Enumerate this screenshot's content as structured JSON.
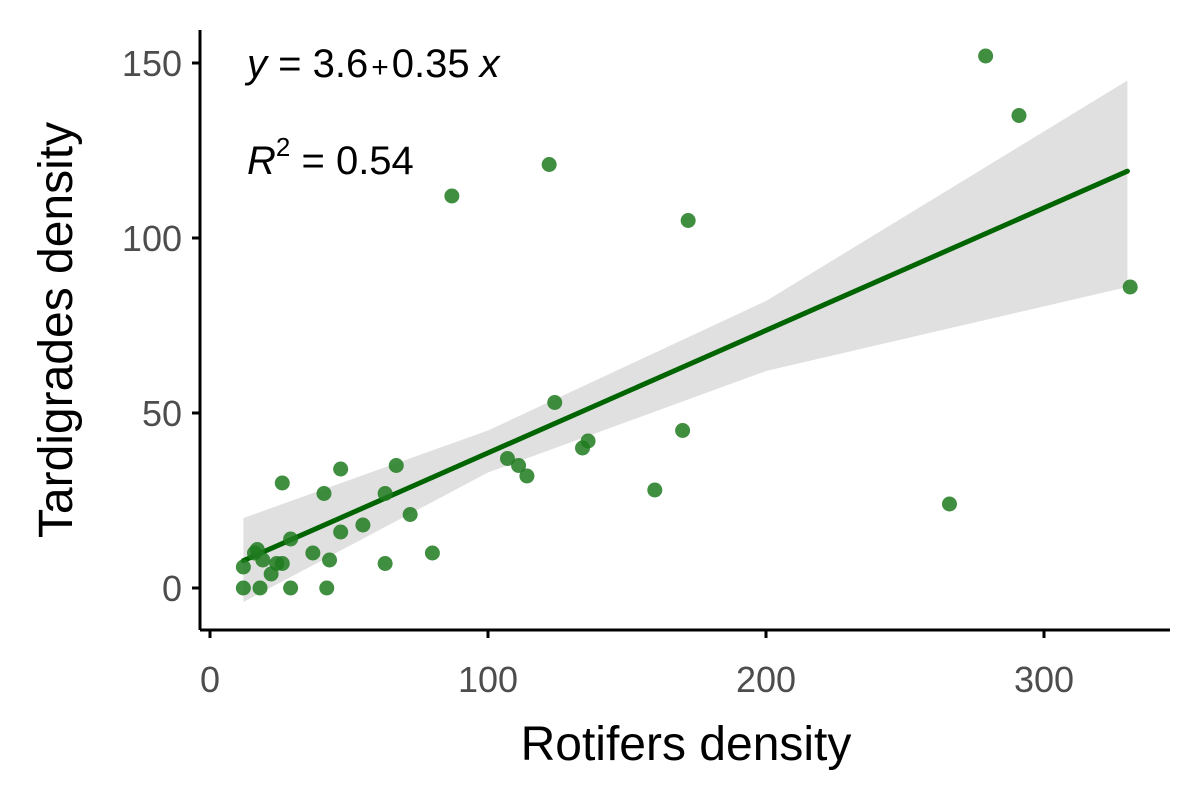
{
  "chart_data": {
    "type": "scatter",
    "xlabel": "Rotifers density",
    "ylabel": "Tardigrades density",
    "xlim": [
      0,
      345
    ],
    "ylim": [
      -10,
      158
    ],
    "x_ticks": [
      0,
      100,
      200,
      300
    ],
    "y_ticks": [
      0,
      50,
      100,
      150
    ],
    "x_tick_labels": [
      "0",
      "100",
      "200",
      "300"
    ],
    "y_tick_labels": [
      "0",
      "50",
      "100",
      "150"
    ],
    "grid": false,
    "colors": {
      "points": "#1e7a1e",
      "line": "#006400",
      "ribbon": "#e0e0e0",
      "axis": "#000000",
      "tick_text": "#4d4d4d"
    },
    "annotations": {
      "equation": {
        "y_var": "y",
        "equals_intercept": " = 3.6",
        "plus": "+",
        "slope": "0.35",
        "x_var": "x"
      },
      "r2": {
        "r": "R",
        "sup": "2",
        "value": " = 0.54"
      }
    },
    "regression": {
      "intercept": 3.6,
      "slope": 0.35,
      "x_range": [
        12,
        330
      ]
    },
    "confidence_band": [
      {
        "x": 12,
        "lower": -4,
        "upper": 20
      },
      {
        "x": 100,
        "lower": 33,
        "upper": 45
      },
      {
        "x": 200,
        "lower": 62,
        "upper": 82
      },
      {
        "x": 330,
        "lower": 86,
        "upper": 145
      }
    ],
    "points": [
      {
        "x": 12,
        "y": 0
      },
      {
        "x": 12,
        "y": 6
      },
      {
        "x": 16,
        "y": 10
      },
      {
        "x": 17,
        "y": 11
      },
      {
        "x": 18,
        "y": 0
      },
      {
        "x": 19,
        "y": 8
      },
      {
        "x": 22,
        "y": 4
      },
      {
        "x": 24,
        "y": 7
      },
      {
        "x": 26,
        "y": 30
      },
      {
        "x": 26,
        "y": 7
      },
      {
        "x": 29,
        "y": 0
      },
      {
        "x": 29,
        "y": 14
      },
      {
        "x": 37,
        "y": 10
      },
      {
        "x": 41,
        "y": 27
      },
      {
        "x": 42,
        "y": 0
      },
      {
        "x": 43,
        "y": 8
      },
      {
        "x": 47,
        "y": 34
      },
      {
        "x": 47,
        "y": 16
      },
      {
        "x": 55,
        "y": 18
      },
      {
        "x": 63,
        "y": 27
      },
      {
        "x": 63,
        "y": 7
      },
      {
        "x": 67,
        "y": 35
      },
      {
        "x": 72,
        "y": 21
      },
      {
        "x": 80,
        "y": 10
      },
      {
        "x": 87,
        "y": 112
      },
      {
        "x": 107,
        "y": 37
      },
      {
        "x": 111,
        "y": 35
      },
      {
        "x": 114,
        "y": 32
      },
      {
        "x": 122,
        "y": 121
      },
      {
        "x": 124,
        "y": 53
      },
      {
        "x": 134,
        "y": 40
      },
      {
        "x": 136,
        "y": 42
      },
      {
        "x": 160,
        "y": 28
      },
      {
        "x": 170,
        "y": 45
      },
      {
        "x": 172,
        "y": 105
      },
      {
        "x": 266,
        "y": 24
      },
      {
        "x": 279,
        "y": 152
      },
      {
        "x": 291,
        "y": 135
      },
      {
        "x": 331,
        "y": 86
      }
    ]
  }
}
